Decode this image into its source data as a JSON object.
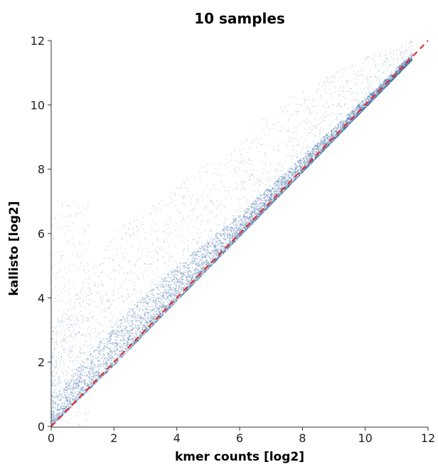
{
  "chart_data": {
    "type": "scatter",
    "title": "10 samples",
    "xlabel": "kmer counts [log2]",
    "ylabel": "kallisto [log2]",
    "xlim": [
      0,
      12
    ],
    "ylim": [
      0,
      12
    ],
    "xticks": [
      "0",
      "2",
      "4",
      "6",
      "8",
      "10",
      "12"
    ],
    "yticks": [
      "0",
      "2",
      "4",
      "6",
      "8",
      "10",
      "12"
    ],
    "grid": false,
    "point_color": "#3f6fa8",
    "reference_line": {
      "type": "identity",
      "x": [
        0,
        12
      ],
      "y": [
        0,
        12
      ],
      "style": "dashed",
      "color": "#e8231d"
    },
    "series": [
      {
        "points_description": "dense cloud concentrated along and above the identity line; lower edge follows y = x, spread increases at low counts",
        "density_profile": [
          {
            "x": 0,
            "y_min": 0.0,
            "y_dense_upper": 0.8,
            "y_sparse_upper": 3.0
          },
          {
            "x": 2,
            "y_min": 1.9,
            "y_dense_upper": 3.2,
            "y_sparse_upper": 6.0
          },
          {
            "x": 4,
            "y_min": 3.9,
            "y_dense_upper": 5.0,
            "y_sparse_upper": 7.5
          },
          {
            "x": 6,
            "y_min": 5.9,
            "y_dense_upper": 6.6,
            "y_sparse_upper": 9.0
          },
          {
            "x": 8,
            "y_min": 7.9,
            "y_dense_upper": 8.4,
            "y_sparse_upper": 10.5
          },
          {
            "x": 10,
            "y_min": 9.9,
            "y_dense_upper": 10.2,
            "y_sparse_upper": 11.5
          },
          {
            "x": 11.5,
            "y_min": 11.4,
            "y_dense_upper": 11.6,
            "y_sparse_upper": 12.0
          }
        ]
      }
    ]
  }
}
